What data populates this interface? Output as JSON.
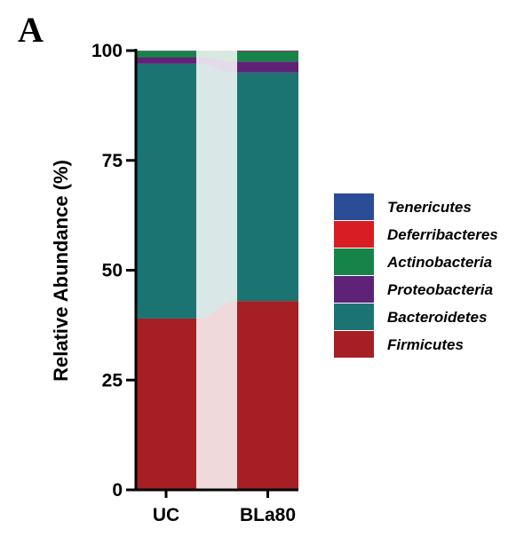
{
  "panel_label": "A",
  "chart_data": {
    "type": "bar",
    "stacked": true,
    "percent": true,
    "categories": [
      "UC",
      "BLa80"
    ],
    "ylabel": "Relative Abundance (%)",
    "ylim": [
      0,
      100
    ],
    "yticks": [
      0,
      25,
      50,
      75,
      100
    ],
    "legend_position": "right",
    "series": [
      {
        "name": "Firmicutes",
        "color": "#a51f24",
        "values": [
          39,
          43
        ]
      },
      {
        "name": "Bacteroidetes",
        "color": "#1b7472",
        "values": [
          58,
          52
        ]
      },
      {
        "name": "Proteobacteria",
        "color": "#5e2277",
        "values": [
          1.5,
          2.5
        ]
      },
      {
        "name": "Actinobacteria",
        "color": "#168449",
        "values": [
          1.4,
          2.3
        ]
      },
      {
        "name": "Deferribacteres",
        "color": "#d81e24",
        "values": [
          0.05,
          0.1
        ]
      },
      {
        "name": "Tenericutes",
        "color": "#2b4c96",
        "values": [
          0.05,
          0.1
        ]
      }
    ]
  }
}
